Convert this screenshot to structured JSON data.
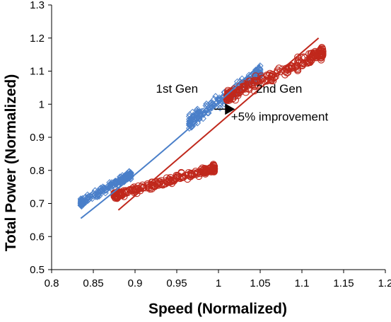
{
  "chart_data": {
    "type": "scatter",
    "title": "",
    "xlabel": "Speed (Normalized)",
    "ylabel": "Total Power (Normalized)",
    "xlim": [
      0.8,
      1.2
    ],
    "ylim": [
      0.5,
      1.3
    ],
    "xticks": [
      "0.8",
      "0.85",
      "0.9",
      "0.95",
      "1",
      "1.05",
      "1.1",
      "1.15",
      "1.2"
    ],
    "yticks": [
      "0.5",
      "0.6",
      "0.7",
      "0.8",
      "0.9",
      "1",
      "1.1",
      "1.2",
      "1.3"
    ],
    "grid": false,
    "series": [
      {
        "name": "1st Gen",
        "marker": "diamond",
        "color": "#4a7fc9",
        "clusters": [
          {
            "x_range": [
              0.835,
              0.895
            ],
            "y_range": [
              0.69,
              0.8
            ]
          },
          {
            "x_range": [
              0.965,
              1.05
            ],
            "y_range": [
              0.92,
              1.12
            ]
          }
        ],
        "trendline": [
          [
            0.835,
            0.655
          ],
          [
            1.05,
            1.12
          ]
        ]
      },
      {
        "name": "2nd Gen",
        "marker": "circle",
        "color": "#c0281c",
        "clusters": [
          {
            "x_range": [
              0.875,
              0.995
            ],
            "y_range": [
              0.71,
              0.82
            ]
          },
          {
            "x_range": [
              1.01,
              1.125
            ],
            "y_range": [
              1.0,
              1.18
            ]
          }
        ],
        "trendline": [
          [
            0.88,
            0.68
          ],
          [
            1.12,
            1.2
          ]
        ]
      }
    ],
    "annotations": [
      {
        "text": "1st  Gen",
        "x": 0.925,
        "y": 1.035
      },
      {
        "text": "2nd  Gen",
        "x": 1.045,
        "y": 1.035
      },
      {
        "text": "+5% improvement",
        "x": 1.015,
        "y": 0.95
      }
    ],
    "arrow": {
      "from": [
        0.995,
        0.985
      ],
      "to": [
        1.018,
        0.985
      ]
    }
  }
}
